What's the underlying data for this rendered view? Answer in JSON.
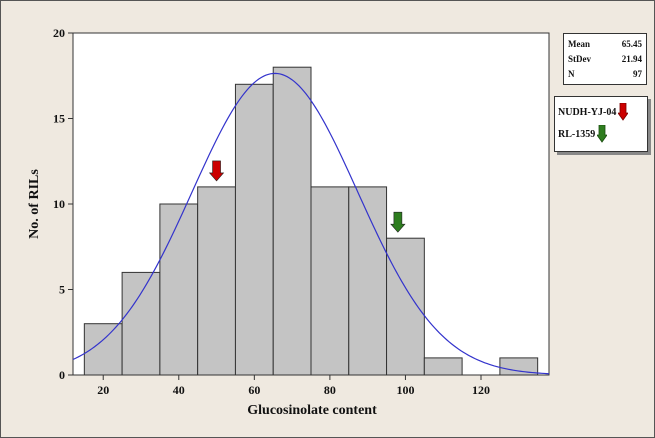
{
  "chart_data": {
    "type": "bar",
    "xlabel": "Glucosinolate content",
    "ylabel": "No. of RILs",
    "xlim": [
      12,
      138
    ],
    "ylim": [
      0,
      20
    ],
    "bin_width": 10,
    "bins": [
      {
        "x0": 15,
        "x1": 25,
        "count": 3
      },
      {
        "x0": 25,
        "x1": 35,
        "count": 6
      },
      {
        "x0": 35,
        "x1": 45,
        "count": 10
      },
      {
        "x0": 45,
        "x1": 55,
        "count": 11
      },
      {
        "x0": 55,
        "x1": 65,
        "count": 17
      },
      {
        "x0": 65,
        "x1": 75,
        "count": 18
      },
      {
        "x0": 75,
        "x1": 85,
        "count": 11
      },
      {
        "x0": 85,
        "x1": 95,
        "count": 11
      },
      {
        "x0": 95,
        "x1": 105,
        "count": 8
      },
      {
        "x0": 105,
        "x1": 115,
        "count": 1
      },
      {
        "x0": 115,
        "x1": 125,
        "count": 0
      },
      {
        "x0": 125,
        "x1": 135,
        "count": 1
      }
    ],
    "x_ticks": [
      20,
      40,
      60,
      80,
      100,
      120
    ],
    "y_ticks": [
      0,
      5,
      10,
      15,
      20
    ],
    "normal_fit": {
      "mean": 65.45,
      "stdev": 21.94,
      "n": 97
    },
    "markers": [
      {
        "label": "NUDH-YJ-04",
        "x": 50,
        "count": 11,
        "color": "#cc0000"
      },
      {
        "label": "RL-1359",
        "x": 98,
        "count": 8,
        "color": "#2e7d1f"
      }
    ],
    "fit_color": "#3333cc",
    "bar_fill": "#c4c4c4",
    "bar_stroke": "#333333"
  },
  "stats": {
    "rows": [
      {
        "label": "Mean",
        "value": "65.45"
      },
      {
        "label": "StDev",
        "value": "21.94"
      },
      {
        "label": "N",
        "value": "97"
      }
    ]
  },
  "legend": {
    "items": [
      {
        "label": "NUDH-YJ-04",
        "color": "#cc0000"
      },
      {
        "label": "RL-1359",
        "color": "#2e7d1f"
      }
    ]
  }
}
